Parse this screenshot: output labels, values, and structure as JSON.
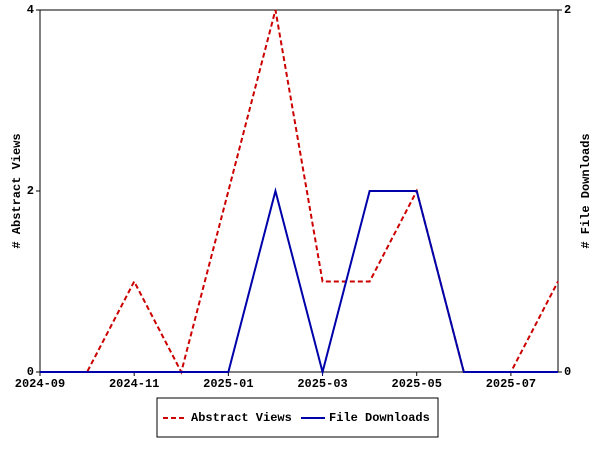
{
  "chart_data": {
    "type": "line",
    "x": [
      "2024-09",
      "2024-10",
      "2024-11",
      "2024-12",
      "2025-01",
      "2025-02",
      "2025-03",
      "2025-04",
      "2025-05",
      "2025-06",
      "2025-07",
      "2025-08"
    ],
    "xticks": [
      "2024-09",
      "2024-11",
      "2025-01",
      "2025-03",
      "2025-05",
      "2025-07"
    ],
    "ylabel": "# Abstract Views",
    "y2label": "# File Downloads",
    "ylim": [
      0,
      4
    ],
    "yticks": [
      0,
      2,
      4
    ],
    "y2lim": [
      0,
      2
    ],
    "y2ticks": [
      0,
      2
    ],
    "legend": "bottom",
    "series": [
      {
        "name": "Abstract Views",
        "color": "#cc0000",
        "dash": true,
        "values": [
          0,
          0,
          1,
          0,
          2,
          4,
          1,
          1,
          2,
          0,
          0,
          1
        ]
      },
      {
        "name": "File Downloads",
        "color": "#0000aa",
        "dash": false,
        "axis": "y2",
        "values": [
          0,
          0,
          0,
          0,
          0,
          1,
          0,
          1,
          1,
          0,
          0,
          0
        ]
      }
    ]
  }
}
